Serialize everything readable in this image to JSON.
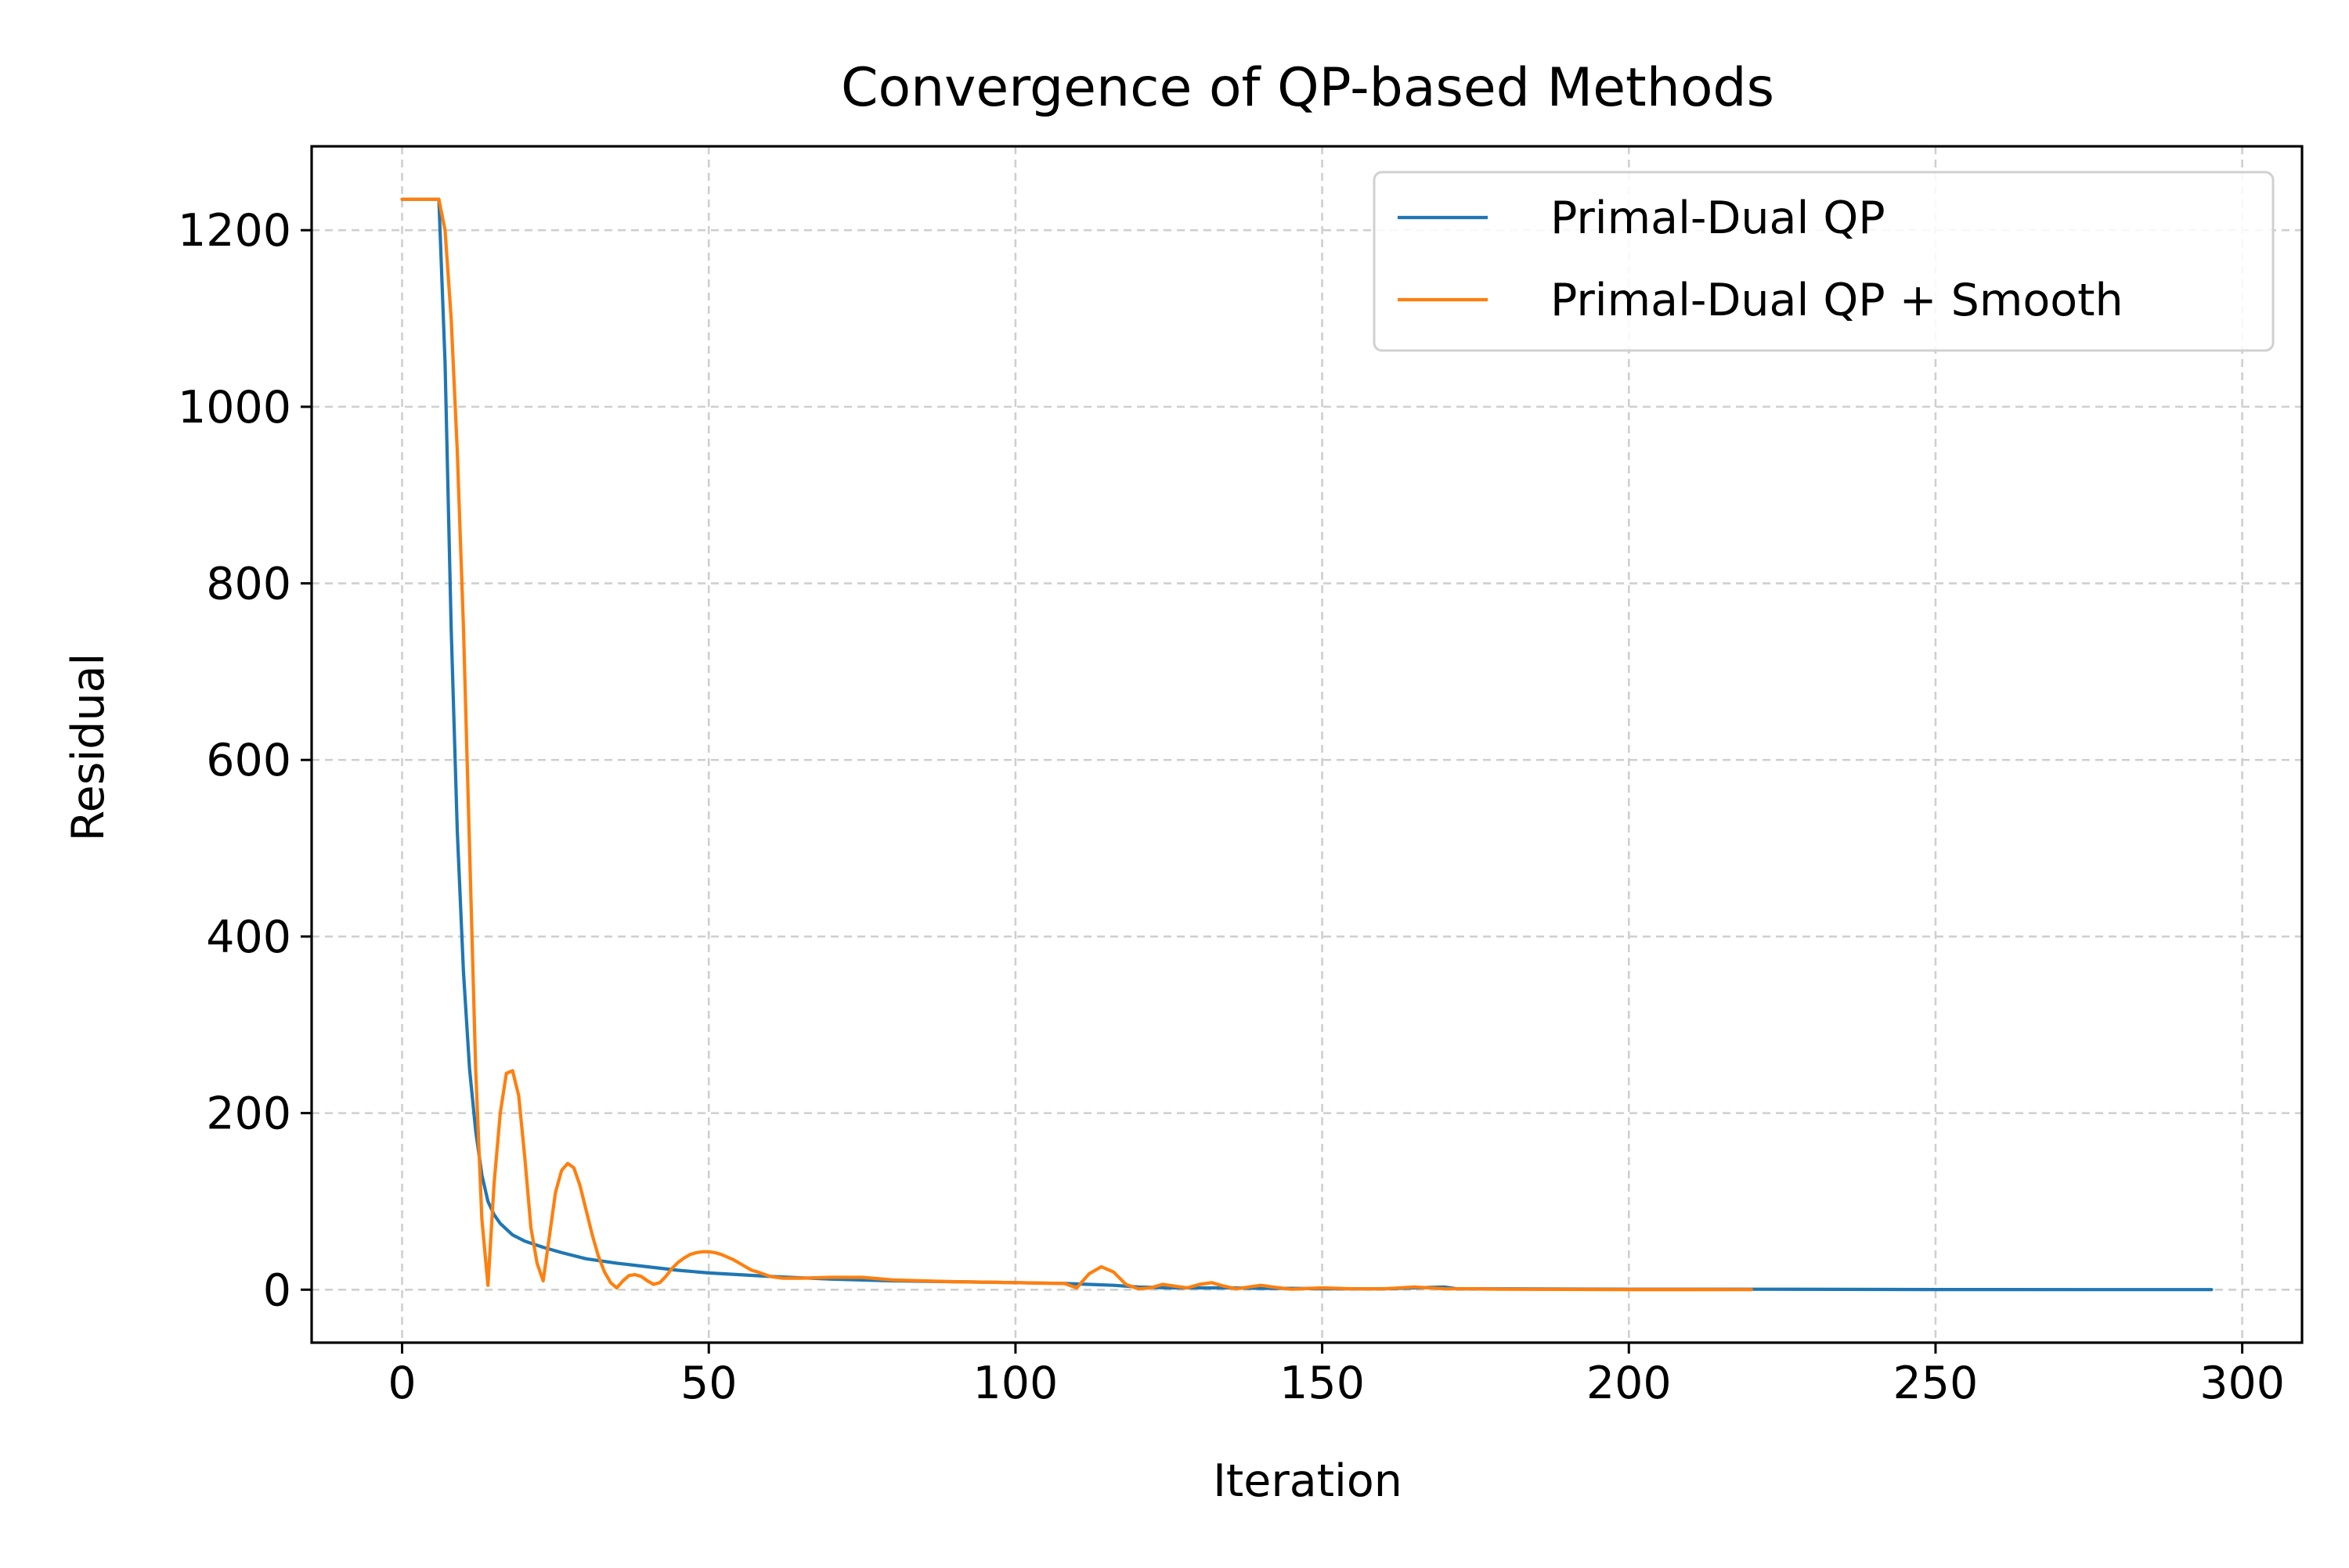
{
  "chart_data": {
    "type": "line",
    "title": "Convergence of QP-based Methods",
    "xlabel": "Iteration",
    "ylabel": "Residual",
    "xlim": [
      -14.75,
      309.75
    ],
    "ylim": [
      -60,
      1295
    ],
    "xticks": [
      0,
      50,
      100,
      150,
      200,
      250,
      300
    ],
    "yticks": [
      0,
      200,
      400,
      600,
      800,
      1000,
      1200
    ],
    "xtick_labels": [
      "0",
      "50",
      "100",
      "150",
      "200",
      "250",
      "300"
    ],
    "ytick_labels": [
      "0",
      "200",
      "400",
      "600",
      "800",
      "1000",
      "1200"
    ],
    "grid": true,
    "legend_position": "top-right",
    "series": [
      {
        "name": "Primal-Dual QP",
        "color": "#1f77b4",
        "x": [
          0,
          2,
          4,
          6,
          7,
          8,
          9,
          10,
          11,
          12,
          13,
          14,
          15,
          16,
          18,
          20,
          23,
          26,
          30,
          35,
          40,
          45,
          50,
          55,
          60,
          70,
          80,
          90,
          100,
          108,
          112,
          116,
          120,
          125,
          130,
          135,
          140,
          145,
          150,
          160,
          170,
          172,
          180,
          200,
          220,
          250,
          280,
          295
        ],
        "y": [
          1235,
          1235,
          1235,
          1235,
          1050,
          750,
          520,
          360,
          250,
          180,
          130,
          100,
          85,
          75,
          62,
          55,
          48,
          42,
          35,
          30,
          26,
          22,
          19,
          17,
          15,
          12,
          10,
          9,
          8,
          7,
          6,
          5,
          3,
          2,
          2,
          2,
          1.5,
          1.5,
          1,
          1,
          3,
          1,
          1,
          0.5,
          0.5,
          0.2,
          0.1,
          0.1
        ]
      },
      {
        "name": "Primal-Dual QP + Smooth",
        "color": "#ff7f0e",
        "x": [
          0,
          2,
          4,
          6,
          7,
          8,
          9,
          10,
          11,
          12,
          13,
          14,
          15,
          16,
          17,
          18,
          19,
          20,
          21,
          22,
          23,
          24,
          25,
          26,
          27,
          28,
          29,
          30,
          31,
          32,
          33,
          34,
          35,
          36,
          37,
          38,
          39,
          40,
          41,
          42,
          43,
          44,
          45,
          46,
          47,
          48,
          49,
          50,
          51,
          52,
          53,
          54,
          55,
          56,
          57,
          58,
          60,
          62,
          65,
          70,
          75,
          80,
          90,
          100,
          108,
          110,
          112,
          114,
          116,
          118,
          120,
          122,
          124,
          126,
          128,
          130,
          132,
          134,
          136,
          138,
          140,
          142,
          145,
          150,
          155,
          160,
          165,
          170,
          175,
          180,
          200,
          220
        ],
        "y": [
          1235,
          1235,
          1235,
          1235,
          1200,
          1100,
          950,
          750,
          500,
          250,
          80,
          5,
          120,
          200,
          245,
          248,
          220,
          150,
          70,
          30,
          10,
          60,
          110,
          135,
          143,
          138,
          118,
          90,
          62,
          38,
          20,
          8,
          2,
          10,
          16,
          17,
          15,
          10,
          6,
          8,
          15,
          24,
          31,
          36,
          40,
          42,
          43,
          43,
          42,
          40,
          37,
          34,
          30,
          26,
          22,
          20,
          15,
          13,
          13,
          14,
          14,
          11,
          9,
          8,
          7,
          2,
          18,
          26,
          20,
          6,
          1,
          2,
          6,
          4,
          2,
          6,
          8,
          4,
          1,
          3,
          5,
          3,
          0.5,
          2,
          1,
          1,
          3,
          1,
          1,
          0.5,
          0.2,
          0.1
        ]
      }
    ]
  }
}
